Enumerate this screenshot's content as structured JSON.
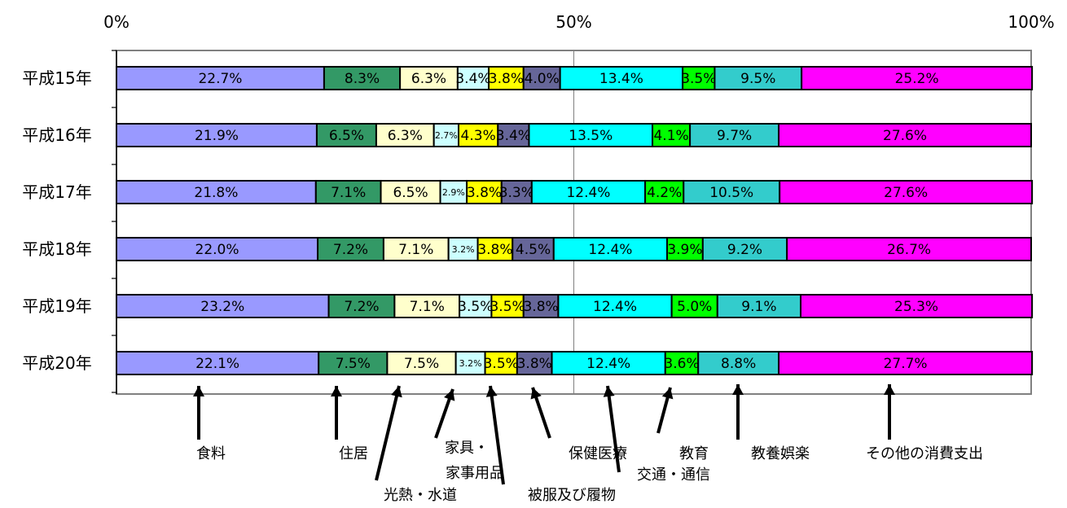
{
  "chart_data": {
    "type": "bar",
    "stacked": "percent",
    "orientation": "horizontal",
    "title": "",
    "x_ticks": [
      "0%",
      "50%",
      "100%"
    ],
    "xlim": [
      0,
      100
    ],
    "categories": [
      "平成15年",
      "平成16年",
      "平成17年",
      "平成18年",
      "平成19年",
      "平成20年"
    ],
    "series": [
      {
        "name": "食料",
        "color": "#9999ff",
        "values": [
          22.7,
          21.9,
          21.8,
          22.0,
          23.2,
          22.1
        ],
        "labels": [
          "22.7%",
          "21.9%",
          "21.8%",
          "22.0%",
          "23.2%",
          "22.1%"
        ]
      },
      {
        "name": "住居",
        "color": "#339966",
        "values": [
          8.3,
          6.5,
          7.1,
          7.2,
          7.2,
          7.5
        ],
        "labels": [
          "8.3%",
          "6.5%",
          "7.1%",
          "7.2%",
          "7.2%",
          "7.5%"
        ]
      },
      {
        "name": "光熱・水道",
        "color": "#ffffcc",
        "values": [
          6.3,
          6.3,
          6.5,
          7.1,
          7.1,
          7.5
        ],
        "labels": [
          "6.3%",
          "6.3%",
          "6.5%",
          "7.1%",
          "7.1%",
          "7.5%"
        ]
      },
      {
        "name": "家具・家事用品",
        "color": "#ccffff",
        "values": [
          3.4,
          2.7,
          2.9,
          3.2,
          3.5,
          3.2
        ],
        "labels": [
          "3.4%",
          "2.7%",
          "2.9%",
          "3.2%",
          "3.5%",
          "3.2%"
        ]
      },
      {
        "name": "被服及び履物",
        "color": "#ffff00",
        "values": [
          3.8,
          4.3,
          3.8,
          3.8,
          3.5,
          3.5
        ],
        "labels": [
          "3.8%",
          "4.3%",
          "3.8%",
          "3.8%",
          "3.5%",
          "3.5%"
        ]
      },
      {
        "name": "保健医療",
        "color": "#666699",
        "values": [
          4.0,
          3.4,
          3.3,
          4.5,
          3.8,
          3.8
        ],
        "labels": [
          "4.0%",
          "3.4%",
          "3.3%",
          "4.5%",
          "3.8%",
          "3.8%"
        ]
      },
      {
        "name": "交通・通信",
        "color": "#00ffff",
        "values": [
          13.4,
          13.5,
          12.4,
          12.4,
          12.4,
          12.4
        ],
        "labels": [
          "13.4%",
          "13.5%",
          "12.4%",
          "12.4%",
          "12.4%",
          "12.4%"
        ]
      },
      {
        "name": "教育",
        "color": "#00ff00",
        "values": [
          3.5,
          4.1,
          4.2,
          3.9,
          5.0,
          3.6
        ],
        "labels": [
          "3.5%",
          "4.1%",
          "4.2%",
          "3.9%",
          "5.0%",
          "3.6%"
        ]
      },
      {
        "name": "教養娯楽",
        "color": "#33cccc",
        "values": [
          9.5,
          9.7,
          10.5,
          9.2,
          9.1,
          8.8
        ],
        "labels": [
          "9.5%",
          "9.7%",
          "10.5%",
          "9.2%",
          "9.1%",
          "8.8%"
        ]
      },
      {
        "name": "その他の消費支出",
        "color": "#ff00ff",
        "values": [
          25.2,
          27.6,
          27.6,
          26.7,
          25.3,
          27.7
        ],
        "labels": [
          "25.2%",
          "27.6%",
          "27.6%",
          "26.7%",
          "25.3%",
          "27.7%"
        ]
      }
    ],
    "annotations": [
      "食料",
      "住居",
      "家具・",
      "家事用品",
      "光熱・水道",
      "被服及び履物",
      "保健医療",
      "教育",
      "交通・通信",
      "教養娯楽",
      "その他の消費支出"
    ],
    "gridlines": [
      50
    ],
    "legend": "bottom"
  }
}
